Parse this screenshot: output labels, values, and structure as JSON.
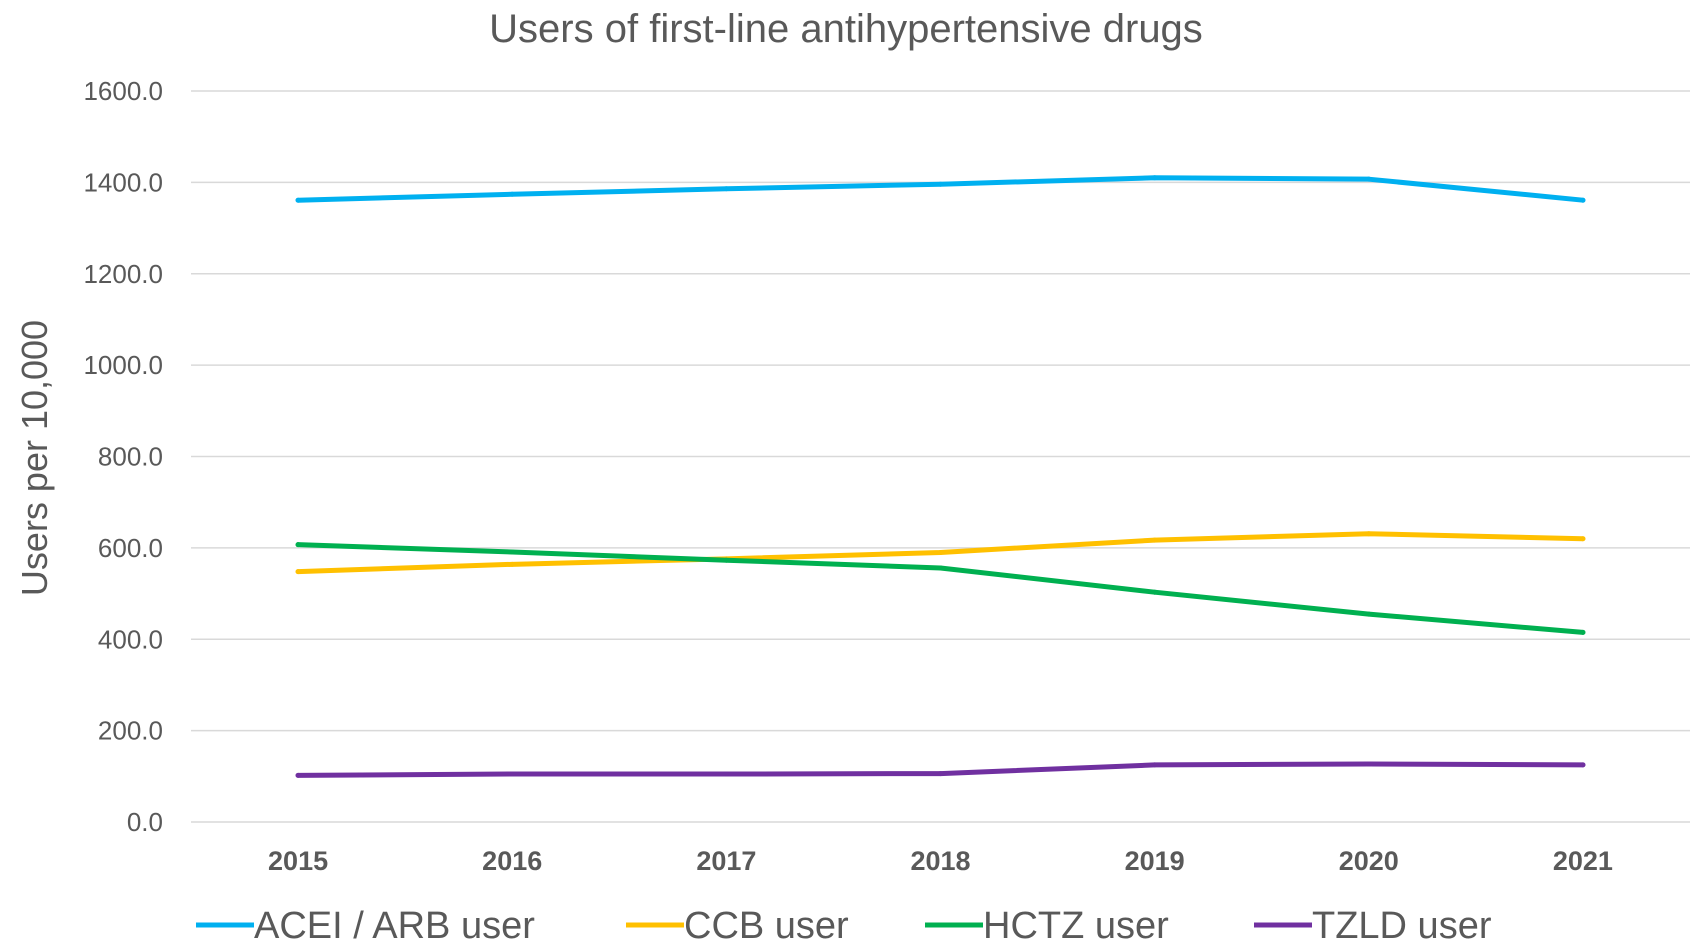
{
  "chart_data": {
    "type": "line",
    "title": "Users of first-line antihypertensive drugs",
    "xlabel": "",
    "ylabel": "Users per 10,000",
    "ylim": [
      0,
      1600
    ],
    "y_ticks": [
      "0.0",
      "200.0",
      "400.0",
      "600.0",
      "800.0",
      "1000.0",
      "1200.0",
      "1400.0",
      "1600.0"
    ],
    "categories": [
      "2015",
      "2016",
      "2017",
      "2018",
      "2019",
      "2020",
      "2021"
    ],
    "grid": true,
    "legend_position": "bottom",
    "series": [
      {
        "name": "ACEI / ARB user",
        "color": "#00b0f0",
        "values": [
          1361,
          1374,
          1386,
          1396,
          1410,
          1407,
          1361
        ]
      },
      {
        "name": "CCB user",
        "color": "#ffc000",
        "values": [
          548,
          564,
          576,
          590,
          617,
          631,
          620
        ]
      },
      {
        "name": "HCTZ user",
        "color": "#00b050",
        "values": [
          607,
          591,
          573,
          556,
          503,
          455,
          415
        ]
      },
      {
        "name": "TZLD user",
        "color": "#7030a0",
        "values": [
          102,
          105,
          105,
          106,
          125,
          127,
          125
        ]
      }
    ]
  }
}
